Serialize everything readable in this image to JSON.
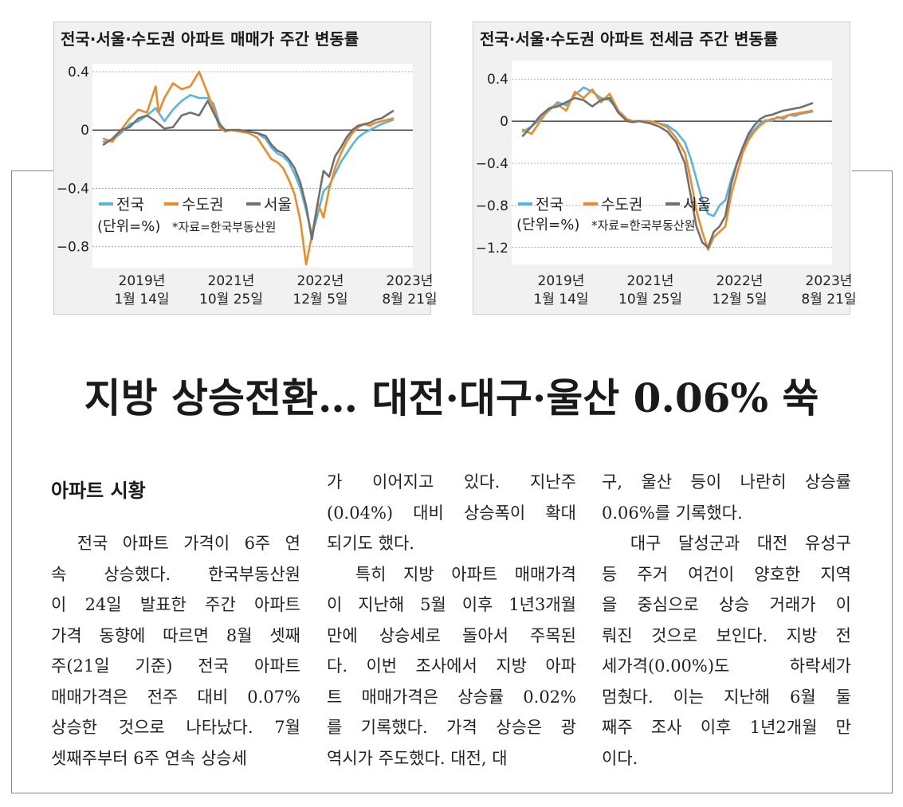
{
  "charts": [
    {
      "id": "chart1",
      "title": "전국·서울·수도권 아파트 매매가 주간 변동률",
      "unit_note": "(단위=%)",
      "source_note": "*자료=한국부동산원",
      "chart_data": {
        "type": "line",
        "ylim": [
          -0.9,
          0.4
        ],
        "yticks": [
          "0.4",
          "0",
          "−0.4",
          "−0.8"
        ],
        "ytick_values": [
          0.4,
          0,
          -0.4,
          -0.8
        ],
        "xtick_labels": [
          [
            "2019년",
            "1월 14일"
          ],
          [
            "2021년",
            "10월 25일"
          ],
          [
            "2022년",
            "12월 5일"
          ],
          [
            "2023년",
            "8월 21일"
          ]
        ],
        "legend": [
          "전국",
          "수도권",
          "서울"
        ],
        "grid": true,
        "series": [
          {
            "name": "전국",
            "color": "#5ab4e0",
            "x": [
              0,
              0.03,
              0.06,
              0.09,
              0.12,
              0.15,
              0.18,
              0.21,
              0.24,
              0.27,
              0.3,
              0.33,
              0.36,
              0.38,
              0.4,
              0.42,
              0.44,
              0.47,
              0.5,
              0.53,
              0.56,
              0.58,
              0.6,
              0.62,
              0.64,
              0.66,
              0.68,
              0.7,
              0.72,
              0.74,
              0.76,
              0.78,
              0.8,
              0.82,
              0.84,
              0.86,
              0.88,
              0.9,
              0.92,
              0.94,
              0.96,
              1.0
            ],
            "y": [
              -0.08,
              -0.07,
              -0.02,
              0.04,
              0.06,
              0.1,
              0.15,
              0.06,
              0.14,
              0.2,
              0.24,
              0.22,
              0.22,
              0.18,
              0.05,
              -0.01,
              0.0,
              0.0,
              -0.01,
              -0.02,
              -0.06,
              -0.12,
              -0.16,
              -0.18,
              -0.22,
              -0.3,
              -0.4,
              -0.55,
              -0.72,
              -0.58,
              -0.42,
              -0.38,
              -0.3,
              -0.22,
              -0.16,
              -0.1,
              -0.05,
              -0.02,
              0.0,
              0.02,
              0.04,
              0.07
            ]
          },
          {
            "name": "수도권",
            "color": "#f08a28",
            "x": [
              0,
              0.03,
              0.06,
              0.09,
              0.12,
              0.15,
              0.18,
              0.19,
              0.21,
              0.24,
              0.27,
              0.3,
              0.33,
              0.36,
              0.38,
              0.4,
              0.42,
              0.44,
              0.47,
              0.5,
              0.53,
              0.56,
              0.58,
              0.6,
              0.62,
              0.64,
              0.66,
              0.68,
              0.7,
              0.72,
              0.74,
              0.76,
              0.78,
              0.8,
              0.82,
              0.84,
              0.86,
              0.88,
              0.9,
              0.92,
              0.94,
              0.96,
              1.0
            ],
            "y": [
              -0.06,
              -0.08,
              0.0,
              0.08,
              0.14,
              0.12,
              0.3,
              0.12,
              0.22,
              0.32,
              0.28,
              0.3,
              0.4,
              0.25,
              0.15,
              0.02,
              -0.01,
              0.0,
              -0.01,
              -0.02,
              -0.05,
              -0.14,
              -0.2,
              -0.22,
              -0.26,
              -0.34,
              -0.44,
              -0.62,
              -0.92,
              -0.72,
              -0.5,
              -0.6,
              -0.4,
              -0.26,
              -0.16,
              -0.08,
              -0.02,
              0.02,
              0.04,
              0.03,
              0.05,
              0.06,
              0.08
            ]
          },
          {
            "name": "서울",
            "color": "#707070",
            "x": [
              0,
              0.03,
              0.06,
              0.09,
              0.12,
              0.15,
              0.18,
              0.21,
              0.24,
              0.27,
              0.3,
              0.33,
              0.36,
              0.38,
              0.4,
              0.42,
              0.44,
              0.47,
              0.5,
              0.53,
              0.56,
              0.58,
              0.6,
              0.62,
              0.64,
              0.66,
              0.68,
              0.7,
              0.72,
              0.74,
              0.76,
              0.78,
              0.8,
              0.82,
              0.84,
              0.86,
              0.88,
              0.9,
              0.92,
              0.94,
              0.96,
              1.0
            ],
            "y": [
              -0.1,
              -0.06,
              0.0,
              0.02,
              0.08,
              0.1,
              0.06,
              0.01,
              0.02,
              0.1,
              0.12,
              0.1,
              0.2,
              0.12,
              0.04,
              0.0,
              0.0,
              0.0,
              -0.01,
              -0.02,
              -0.04,
              -0.1,
              -0.14,
              -0.16,
              -0.2,
              -0.26,
              -0.36,
              -0.52,
              -0.75,
              -0.5,
              -0.28,
              -0.32,
              -0.18,
              -0.12,
              -0.05,
              0.0,
              0.03,
              0.04,
              0.05,
              0.07,
              0.08,
              0.13
            ]
          }
        ]
      }
    },
    {
      "id": "chart2",
      "title": "전국·서울·수도권 아파트 전세금 주간 변동률",
      "unit_note": "(단위=%)",
      "source_note": "*자료=한국부동산원",
      "chart_data": {
        "type": "line",
        "ylim": [
          -1.3,
          0.5
        ],
        "yticks": [
          "0.4",
          "0",
          "−0.4",
          "−0.8",
          "−1.2"
        ],
        "ytick_values": [
          0.4,
          0,
          -0.4,
          -0.8,
          -1.2
        ],
        "xtick_labels": [
          [
            "2019년",
            "1월 14일"
          ],
          [
            "2021년",
            "10월 25일"
          ],
          [
            "2022년",
            "12월 5일"
          ],
          [
            "2023년",
            "8월 21일"
          ]
        ],
        "legend": [
          "전국",
          "수도권",
          "서울"
        ],
        "grid": true,
        "series": [
          {
            "name": "전국",
            "color": "#5ab4e0",
            "x": [
              0,
              0.03,
              0.06,
              0.09,
              0.12,
              0.15,
              0.18,
              0.21,
              0.24,
              0.27,
              0.3,
              0.33,
              0.36,
              0.38,
              0.4,
              0.42,
              0.44,
              0.47,
              0.5,
              0.53,
              0.56,
              0.58,
              0.6,
              0.62,
              0.64,
              0.66,
              0.68,
              0.7,
              0.72,
              0.74,
              0.76,
              0.78,
              0.8,
              0.82,
              0.84,
              0.86,
              0.88,
              0.9,
              0.92,
              0.94,
              0.96,
              1.0
            ],
            "y": [
              -0.1,
              -0.05,
              0.02,
              0.1,
              0.18,
              0.15,
              0.25,
              0.32,
              0.28,
              0.22,
              0.2,
              0.1,
              0.02,
              -0.01,
              0.0,
              0.0,
              0.0,
              -0.02,
              -0.04,
              -0.1,
              -0.2,
              -0.35,
              -0.55,
              -0.75,
              -0.88,
              -0.9,
              -0.8,
              -0.75,
              -0.55,
              -0.4,
              -0.25,
              -0.15,
              -0.08,
              -0.02,
              0.01,
              0.0,
              0.04,
              0.02,
              0.06,
              0.05,
              0.07,
              0.09
            ]
          },
          {
            "name": "수도권",
            "color": "#f08a28",
            "x": [
              0,
              0.03,
              0.06,
              0.09,
              0.12,
              0.15,
              0.18,
              0.21,
              0.24,
              0.27,
              0.3,
              0.33,
              0.36,
              0.38,
              0.4,
              0.42,
              0.44,
              0.47,
              0.5,
              0.53,
              0.56,
              0.58,
              0.6,
              0.62,
              0.64,
              0.66,
              0.68,
              0.7,
              0.72,
              0.74,
              0.76,
              0.78,
              0.8,
              0.82,
              0.84,
              0.86,
              0.88,
              0.9,
              0.92,
              0.94,
              0.96,
              1.0
            ],
            "y": [
              -0.08,
              -0.12,
              0.0,
              0.12,
              0.16,
              0.1,
              0.28,
              0.22,
              0.3,
              0.18,
              0.26,
              0.1,
              0.02,
              0.0,
              0.0,
              0.0,
              0.0,
              -0.02,
              -0.06,
              -0.16,
              -0.3,
              -0.55,
              -0.85,
              -1.05,
              -1.22,
              -1.1,
              -1.05,
              -1.0,
              -0.7,
              -0.5,
              -0.3,
              -0.18,
              -0.1,
              -0.04,
              0.0,
              0.02,
              0.03,
              0.04,
              0.06,
              0.07,
              0.08,
              0.1
            ]
          },
          {
            "name": "서울",
            "color": "#707070",
            "x": [
              0,
              0.03,
              0.06,
              0.09,
              0.12,
              0.15,
              0.18,
              0.21,
              0.24,
              0.27,
              0.3,
              0.33,
              0.36,
              0.38,
              0.4,
              0.42,
              0.44,
              0.47,
              0.5,
              0.53,
              0.56,
              0.58,
              0.6,
              0.62,
              0.64,
              0.66,
              0.68,
              0.7,
              0.72,
              0.74,
              0.76,
              0.78,
              0.8,
              0.82,
              0.84,
              0.86,
              0.88,
              0.9,
              0.92,
              0.94,
              0.96,
              1.0
            ],
            "y": [
              -0.14,
              -0.05,
              0.05,
              0.12,
              0.14,
              0.18,
              0.22,
              0.2,
              0.14,
              0.2,
              0.22,
              0.08,
              0.0,
              -0.01,
              0.0,
              -0.01,
              -0.02,
              -0.05,
              -0.1,
              -0.2,
              -0.4,
              -0.7,
              -1.0,
              -1.15,
              -1.2,
              -1.05,
              -1.0,
              -0.9,
              -0.6,
              -0.4,
              -0.25,
              -0.12,
              -0.04,
              0.02,
              0.05,
              0.06,
              0.08,
              0.1,
              0.11,
              0.12,
              0.13,
              0.17
            ]
          }
        ]
      }
    }
  ],
  "headline": "지방 상승전환… 대전·대구·울산 0.06% 쑥",
  "section_title": "아파트 시황",
  "columns": [
    [
      "　전국 아파트 가격이 6주 연",
      "속 상승했다. 한국부동산원",
      "이 24일 발표한 주간 아파트",
      "가격 동향에 따르면 8월 셋째",
      "주(21일 기준) 전국 아파트",
      "매매가격은 전주 대비 0.07%",
      "상승한 것으로 나타났다. 7월",
      "셋째주부터 6주 연속 상승세"
    ],
    [
      "가 이어지고 있다. 지난주",
      "(0.04%) 대비 상승폭이 확대",
      "되기도 했다.",
      "　특히 지방 아파트 매매가격",
      "이 지난해 5월 이후 1년3개월",
      "만에 상승세로 돌아서 주목된",
      "다. 이번 조사에서 지방 아파",
      "트 매매가격은 상승률 0.02%",
      "를 기록했다. 가격 상승은 광",
      "역시가 주도했다. 대전, 대"
    ],
    [
      "구, 울산 등이 나란히 상승률",
      "0.06%를 기록했다.",
      "　대구 달성군과 대전 유성구",
      "등 주거 여건이 양호한 지역",
      "을 중심으로 상승 거래가 이",
      "뤄진 것으로 보인다. 지방 전",
      "세가격(0.00%)도 하락세가",
      "멈췄다. 이는 지난해 6월 둘",
      "째주 조사 이후 1년2개월 만",
      "이다."
    ]
  ],
  "paragraph_end_lines": [
    [
      7
    ],
    [
      2,
      9
    ],
    [
      1,
      9
    ]
  ]
}
